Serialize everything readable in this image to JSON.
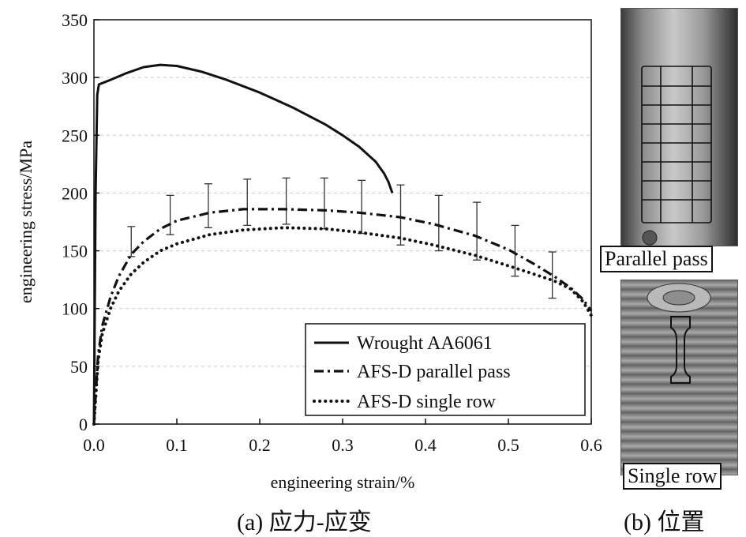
{
  "chart_data": {
    "type": "line",
    "xlabel": "engineering strain/%",
    "ylabel": "engineering stress/MPa",
    "xlim": [
      0,
      0.6
    ],
    "ylim": [
      0,
      350
    ],
    "x_ticks": [
      "0.0",
      "0.1",
      "0.2",
      "0.3",
      "0.4",
      "0.5",
      "0.6"
    ],
    "y_ticks": [
      "0",
      "50",
      "100",
      "150",
      "200",
      "250",
      "300",
      "350"
    ],
    "grid": "horizontal dashed",
    "legend_position": "bottom-right",
    "series": [
      {
        "name": "Wrought AA6061",
        "style": "solid",
        "color": "#111111",
        "x": [
          0.0,
          0.002,
          0.004,
          0.006,
          0.02,
          0.04,
          0.06,
          0.08,
          0.1,
          0.13,
          0.16,
          0.2,
          0.24,
          0.28,
          0.3,
          0.32,
          0.34,
          0.35,
          0.355,
          0.36
        ],
        "y": [
          0,
          200,
          285,
          294,
          298,
          304,
          309,
          311,
          310,
          305,
          298,
          287,
          274,
          259,
          250,
          240,
          227,
          217,
          210,
          200
        ]
      },
      {
        "name": "AFS-D parallel pass",
        "style": "dashdot",
        "color": "#111111",
        "x": [
          0.0,
          0.005,
          0.01,
          0.02,
          0.03,
          0.045,
          0.06,
          0.08,
          0.1,
          0.14,
          0.18,
          0.23,
          0.28,
          0.32,
          0.37,
          0.41,
          0.46,
          0.5,
          0.53,
          0.555,
          0.575,
          0.59,
          0.6
        ],
        "y": [
          0,
          60,
          85,
          110,
          128,
          147,
          158,
          169,
          176,
          183,
          186,
          186,
          185,
          183,
          179,
          173,
          163,
          151,
          139,
          128,
          118,
          108,
          98
        ]
      },
      {
        "name": "AFS-D single row",
        "style": "dotted",
        "color": "#111111",
        "x": [
          0.0,
          0.005,
          0.01,
          0.02,
          0.03,
          0.045,
          0.06,
          0.08,
          0.1,
          0.14,
          0.18,
          0.23,
          0.28,
          0.32,
          0.37,
          0.41,
          0.46,
          0.5,
          0.53,
          0.555,
          0.575,
          0.59,
          0.6
        ],
        "y": [
          0,
          55,
          78,
          100,
          115,
          130,
          140,
          150,
          156,
          164,
          168,
          170,
          169,
          166,
          161,
          155,
          146,
          137,
          130,
          124,
          117,
          106,
          94
        ]
      }
    ],
    "error_bars": {
      "x": [
        0.045,
        0.092,
        0.138,
        0.185,
        0.232,
        0.278,
        0.323,
        0.37,
        0.416,
        0.462,
        0.508,
        0.553
      ],
      "center": [
        158,
        181,
        189,
        192,
        193,
        191,
        188,
        181,
        174,
        167,
        150,
        129
      ],
      "error": [
        13,
        17,
        19,
        20,
        20,
        22,
        23,
        26,
        24,
        25,
        22,
        20
      ]
    }
  },
  "captions": {
    "left": "(a)  应力-应变",
    "right": "(b)  位置"
  },
  "photos": {
    "top_label": "Parallel pass",
    "bottom_label": "Single row"
  }
}
